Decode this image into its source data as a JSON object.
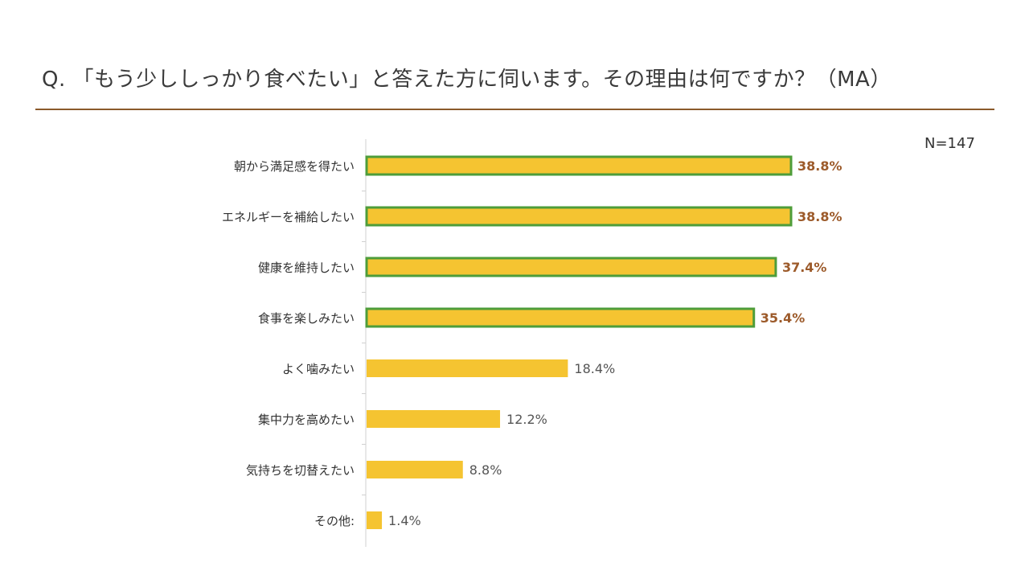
{
  "title": "Q. 「もう少ししっかり食べたい」と答えた方に伺います。その理由は何ですか？（MA）",
  "sample_size": "N=147",
  "colors": {
    "bar_fill": "#F5C431",
    "highlight_border": "#4E9D3A",
    "highlight_label": "#9C5A2A",
    "normal_label": "#555555",
    "rule": "#8A5A2B",
    "axis": "#D0D0D0"
  },
  "chart_data": {
    "type": "bar",
    "orientation": "horizontal",
    "categories": [
      "朝から満足感を得たい",
      "エネルギーを補給したい",
      "健康を維持したい",
      "食事を楽しみたい",
      "よく噛みたい",
      "集中力を高めたい",
      "気持ちを切替えたい",
      "その他:"
    ],
    "values": [
      38.8,
      38.8,
      37.4,
      35.4,
      18.4,
      12.2,
      8.8,
      1.4
    ],
    "value_labels": [
      "38.8%",
      "38.8%",
      "37.4%",
      "35.4%",
      "18.4%",
      "12.2%",
      "8.8%",
      "1.4%"
    ],
    "highlighted": [
      true,
      true,
      true,
      true,
      false,
      false,
      false,
      false
    ],
    "xlim": [
      0,
      40
    ]
  }
}
